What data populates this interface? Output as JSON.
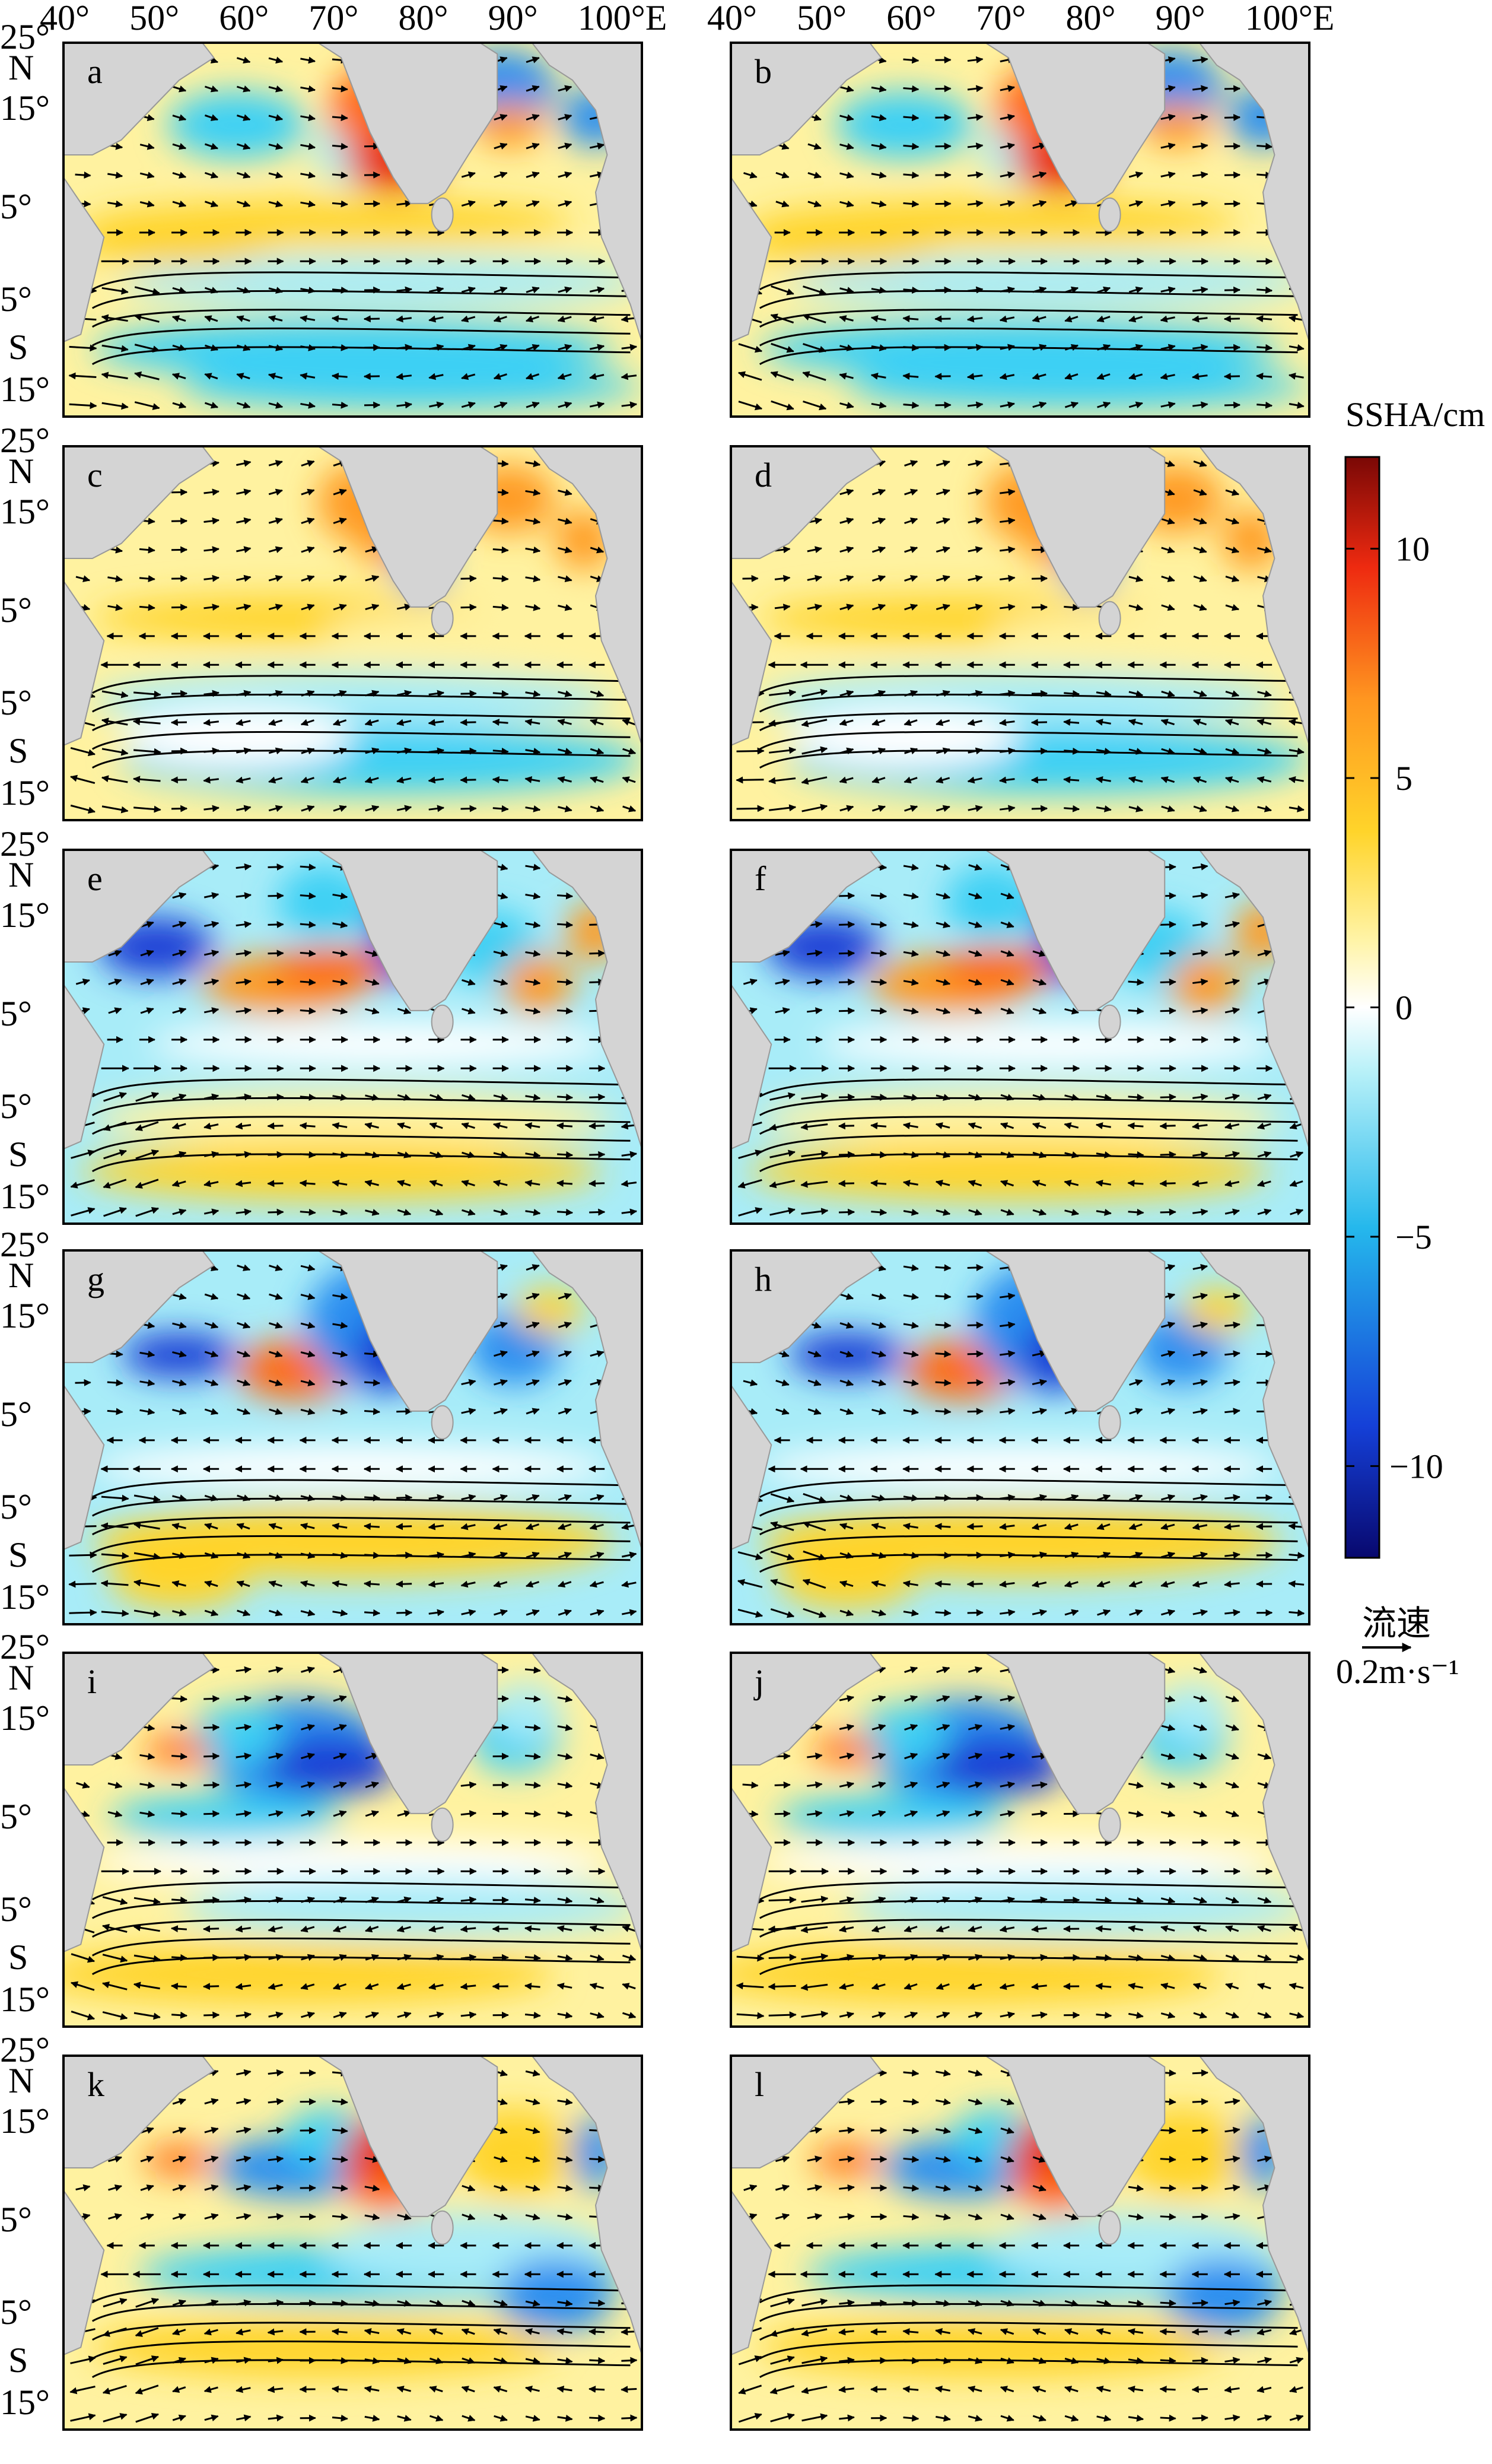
{
  "figure": {
    "panels": [
      {
        "letter": "a",
        "field": "a"
      },
      {
        "letter": "b",
        "field": "a"
      },
      {
        "letter": "c",
        "field": "c"
      },
      {
        "letter": "d",
        "field": "c"
      },
      {
        "letter": "e",
        "field": "e"
      },
      {
        "letter": "f",
        "field": "e"
      },
      {
        "letter": "g",
        "field": "g"
      },
      {
        "letter": "h",
        "field": "g"
      },
      {
        "letter": "i",
        "field": "i"
      },
      {
        "letter": "j",
        "field": "i"
      },
      {
        "letter": "k",
        "field": "k"
      },
      {
        "letter": "l",
        "field": "k"
      }
    ],
    "top_axis_labels": [
      "40°",
      "50°",
      "60°",
      "70°",
      "80°",
      "90°",
      "100°E"
    ],
    "left_axis_labels": [
      "25°",
      "N",
      "15°",
      "5°",
      "5°",
      "S",
      "15°"
    ],
    "colorbar": {
      "title": "SSHA/cm",
      "ticks": [
        "10",
        "5",
        "0",
        "−5",
        "−10"
      ],
      "range": [
        -12,
        12
      ]
    },
    "vector_legend": {
      "title": "流速",
      "scale": "0.2m·s⁻¹"
    },
    "colors": {
      "land": "#d4d4d4",
      "ocean_zero": "#ffffff",
      "cmap": [
        "#08086e",
        "#1540d8",
        "#25b8ec",
        "#b6f0f8",
        "#ffffff",
        "#fff4a8",
        "#ffd42a",
        "#ff9620",
        "#ee2a10",
        "#7a0806"
      ]
    }
  }
}
